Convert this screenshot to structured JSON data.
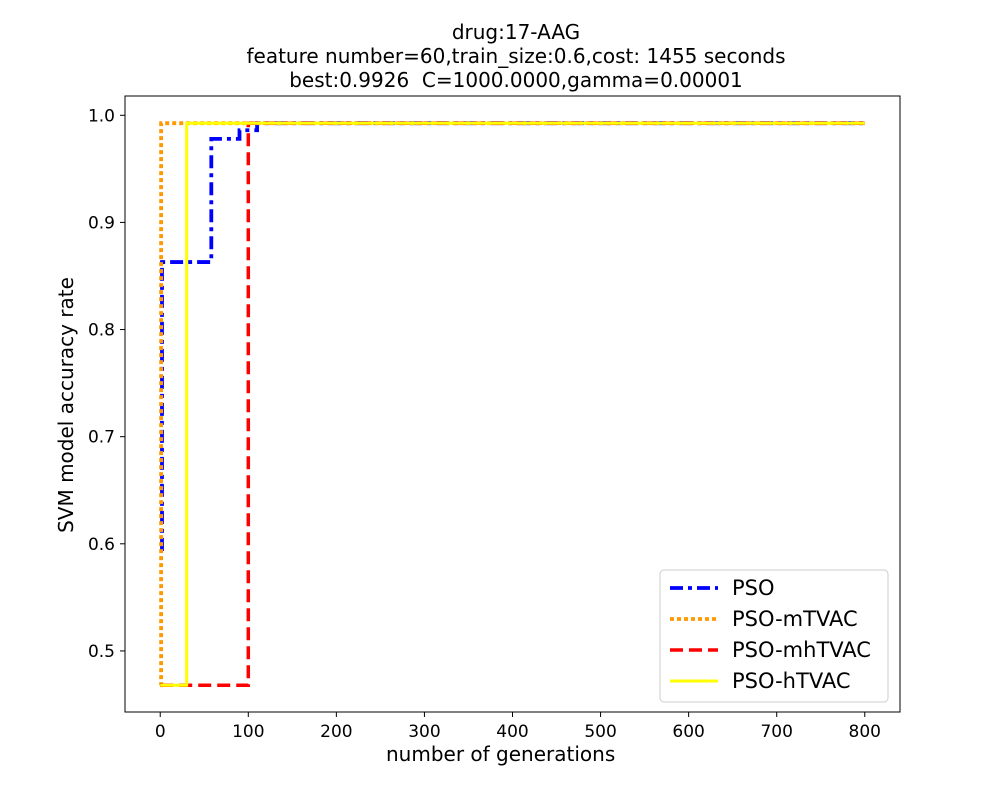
{
  "chart_data": {
    "type": "line",
    "title_lines": [
      "drug:17-AAG",
      "feature number=60,train_size:0.6,cost: 1455 seconds",
      "best:0.9926  C=1000.0000,gamma=0.00001"
    ],
    "xlabel": "number of generations",
    "ylabel": "SVM model accuracy rate",
    "xlim": [
      -40,
      840
    ],
    "ylim": [
      0.443,
      1.018
    ],
    "xticks": [
      0,
      100,
      200,
      300,
      400,
      500,
      600,
      700,
      800
    ],
    "yticks": [
      0.5,
      0.6,
      0.7,
      0.8,
      0.9,
      1.0
    ],
    "ytick_labels": [
      "0.5",
      "0.6",
      "0.7",
      "0.8",
      "0.9",
      "1.0"
    ],
    "legend_position": "lower-right",
    "series": [
      {
        "name": "PSO",
        "color": "#0000ff",
        "style": "dashdot",
        "points": [
          [
            0,
            0.595
          ],
          [
            2,
            0.595
          ],
          [
            2,
            0.863
          ],
          [
            58,
            0.863
          ],
          [
            58,
            0.978
          ],
          [
            90,
            0.978
          ],
          [
            90,
            0.986
          ],
          [
            110,
            0.986
          ],
          [
            110,
            0.9926
          ],
          [
            800,
            0.9926
          ]
        ]
      },
      {
        "name": "PSO-mTVAC",
        "color": "#ff9900",
        "style": "dotted",
        "points": [
          [
            0,
            0.468
          ],
          [
            1,
            0.468
          ],
          [
            1,
            0.9926
          ],
          [
            800,
            0.9926
          ]
        ]
      },
      {
        "name": "PSO-mhTVAC",
        "color": "#ff0000",
        "style": "dashed",
        "points": [
          [
            0,
            0.468
          ],
          [
            100,
            0.468
          ],
          [
            100,
            0.9926
          ],
          [
            800,
            0.9926
          ]
        ]
      },
      {
        "name": "PSO-hTVAC",
        "color": "#ffff00",
        "style": "solid",
        "points": [
          [
            0,
            0.468
          ],
          [
            30,
            0.468
          ],
          [
            30,
            0.9926
          ],
          [
            800,
            0.9926
          ]
        ]
      }
    ]
  }
}
